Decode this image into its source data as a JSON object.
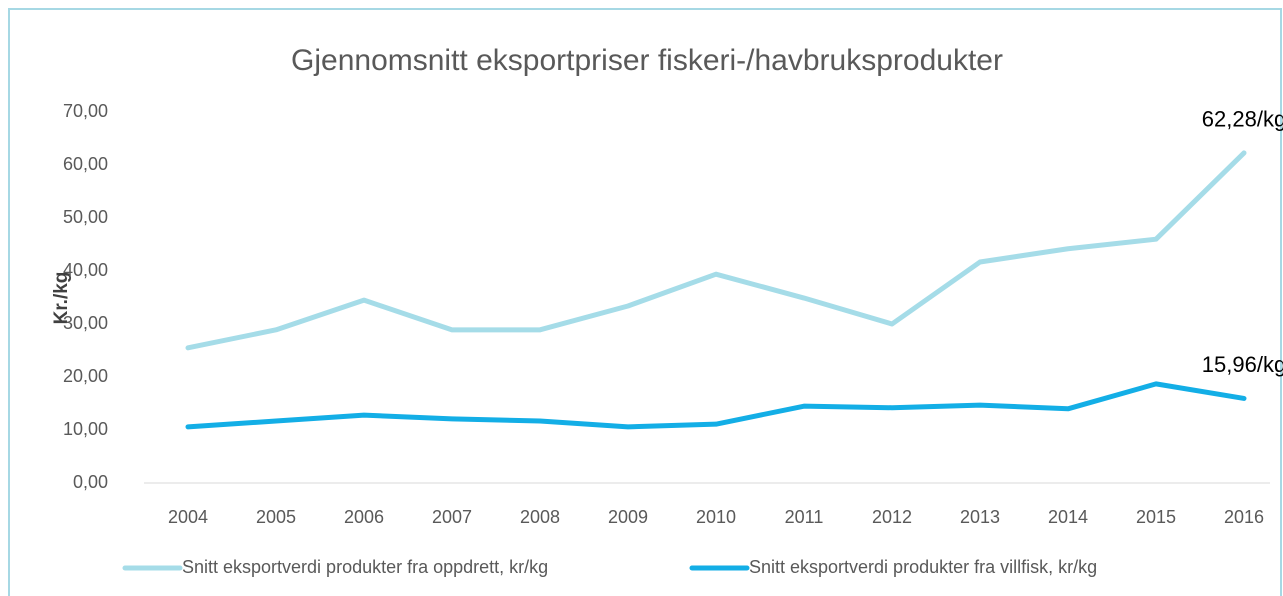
{
  "chart_data": {
    "type": "line",
    "title": "Gjennomsnitt eksportpriser fiskeri-/havbruksprodukter",
    "y_label": "Kr./kg",
    "categories": [
      "2004",
      "2005",
      "2006",
      "2007",
      "2008",
      "2009",
      "2010",
      "2011",
      "2012",
      "2013",
      "2014",
      "2015",
      "2016"
    ],
    "series": [
      {
        "name": "Snitt eksportverdi produkter fra oppdrett, kr/kg",
        "color": "#a5dce8",
        "values": [
          25.5,
          28.9,
          34.5,
          28.9,
          28.9,
          33.4,
          39.4,
          34.9,
          30.0,
          41.7,
          44.2,
          46.0,
          62.28
        ],
        "value_labels": [
          null,
          null,
          null,
          null,
          null,
          null,
          null,
          null,
          null,
          null,
          null,
          null,
          "62,28/kg"
        ]
      },
      {
        "name": "Snitt eksportverdi produkter fra villfisk, kr/kg",
        "color": "#13aee6",
        "values": [
          10.6,
          11.7,
          12.8,
          12.1,
          11.7,
          10.6,
          11.1,
          14.5,
          14.2,
          14.7,
          14.0,
          18.7,
          15.96
        ],
        "value_labels": [
          null,
          null,
          null,
          null,
          null,
          null,
          null,
          null,
          null,
          null,
          null,
          null,
          "15,96/kg"
        ]
      }
    ],
    "ylim": [
      0,
      70
    ],
    "yticks": [
      {
        "value": 0,
        "label": "0,00"
      },
      {
        "value": 10,
        "label": "10,00"
      },
      {
        "value": 20,
        "label": "20,00"
      },
      {
        "value": 30,
        "label": "30,00"
      },
      {
        "value": 40,
        "label": "40,00"
      },
      {
        "value": 50,
        "label": "50,00"
      },
      {
        "value": 60,
        "label": "60,00"
      },
      {
        "value": 70,
        "label": "70,00"
      }
    ],
    "grid": false,
    "legend": "bottom"
  }
}
